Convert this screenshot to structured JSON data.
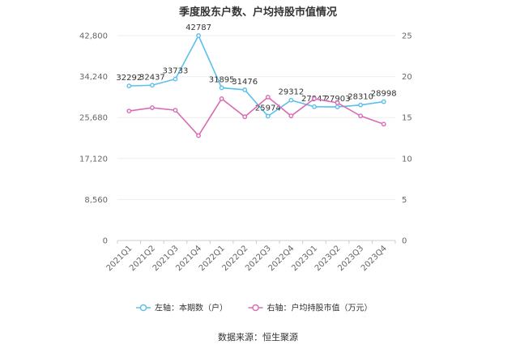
{
  "chart_data": {
    "type": "line",
    "title": "季度股东户数、户均持股市值情况",
    "categories": [
      "2021Q1",
      "2021Q2",
      "2021Q3",
      "2021Q4",
      "2022Q1",
      "2022Q2",
      "2022Q3",
      "2022Q4",
      "2023Q1",
      "2023Q2",
      "2023Q3",
      "2023Q4"
    ],
    "y_left": {
      "ylim": [
        0,
        42800
      ],
      "ticks": [
        "0",
        "8,560",
        "17,120",
        "25,680",
        "34,240",
        "42,800"
      ],
      "tick_values": [
        0,
        8560,
        17120,
        25680,
        34240,
        42800
      ]
    },
    "y_right": {
      "ylim": [
        0,
        25
      ],
      "ticks": [
        "0",
        "5",
        "10",
        "15",
        "20",
        "25"
      ],
      "tick_values": [
        0,
        5,
        10,
        15,
        20,
        25
      ]
    },
    "grid": true,
    "legend_position": "bottom",
    "series": [
      {
        "name": "左轴：本期数（户）",
        "axis": "left",
        "color": "#5bc0eb",
        "values": [
          32292,
          32437,
          33733,
          42787,
          31895,
          31476,
          25974,
          29312,
          27947,
          27903,
          28310,
          28998
        ],
        "labels": [
          "32292",
          "32437",
          "33733",
          "42787",
          "31895",
          "31476",
          "25974",
          "29312",
          "27947",
          "27903",
          "28310",
          "28998"
        ]
      },
      {
        "name": "右轴：户均持股市值（万元）",
        "axis": "right",
        "color": "#d96bb5",
        "values": [
          15.8,
          16.2,
          15.9,
          12.8,
          17.3,
          15.1,
          17.5,
          15.2,
          17.3,
          16.8,
          15.2,
          14.2
        ]
      }
    ]
  },
  "footer": {
    "source": "数据来源：恒生聚源"
  }
}
